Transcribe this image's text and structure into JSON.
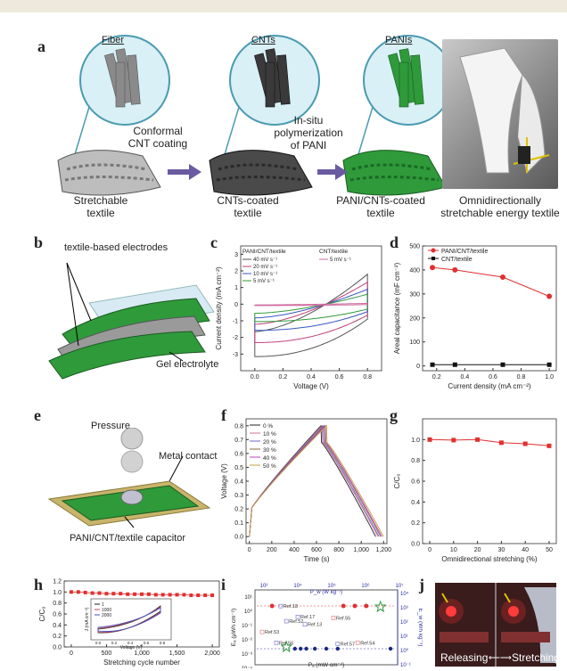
{
  "panel_letters": {
    "a": "a",
    "b": "b",
    "c": "c",
    "d": "d",
    "e": "e",
    "f": "f",
    "g": "g",
    "h": "h",
    "i": "i",
    "j": "j"
  },
  "schematic_a": {
    "zoom_labels": [
      "Fiber",
      "CNTs",
      "PANIs"
    ],
    "captions": [
      "Stretchable\ntextile",
      "CNTs-coated\ntextile",
      "PANI/CNTs-coated\ntextile",
      "Omnidirectionally\nstretchable energy textile"
    ],
    "step_labels": [
      "Conformal\nCNT coating",
      "In-situ\npolymerization\nof PANI"
    ],
    "colors": {
      "fiber": "#8a8a8a",
      "cnt": "#3a3a3a",
      "pani": "#2f9a3a",
      "arrow": "#6b5aa0"
    }
  },
  "schematic_b": {
    "top_label": "textile-based electrodes",
    "bottom_label": "Gel electrolyte"
  },
  "schematic_e": {
    "pressure": "Pressure",
    "contact": "Metal contact",
    "device": "PANI/CNT/textile capacitor"
  },
  "photo_j": {
    "left": "Releasing",
    "right": "Stretching",
    "arrow": "⟵⟶"
  },
  "chart_data": [
    {
      "panel": "c",
      "type": "line",
      "xlabel": "Voltage (V)",
      "ylabel": "Current density (mA cm⁻²)",
      "xlim": [
        -0.1,
        0.9
      ],
      "ylim": [
        -4,
        3.5
      ],
      "xticks": [
        0.0,
        0.2,
        0.4,
        0.6,
        0.8
      ],
      "yticks": [
        -3,
        -2,
        -1,
        0,
        1,
        2,
        3
      ],
      "legend_headers": [
        "PANI/CNT/textile",
        "CNT/textile"
      ],
      "series": [
        {
          "name": "40 mV s⁻¹",
          "amp": 3.0,
          "color": "#555555"
        },
        {
          "name": "20 mV s⁻¹",
          "amp": 2.2,
          "color": "#c0407a"
        },
        {
          "name": "10 mV s⁻¹",
          "amp": 1.5,
          "color": "#3a55c0"
        },
        {
          "name": "5 mV s⁻¹",
          "amp": 1.0,
          "color": "#2f9a3a"
        },
        {
          "name": "5 mV s⁻¹",
          "amp": 0.08,
          "color": "#d06aa0"
        }
      ]
    },
    {
      "panel": "d",
      "type": "line",
      "xlabel": "Current density (mA cm⁻²)",
      "ylabel": "Areal capacitance (mF cm⁻²)",
      "xlim": [
        0.1,
        1.05
      ],
      "ylim": [
        -20,
        500
      ],
      "xticks": [
        0.2,
        0.4,
        0.6,
        0.8,
        1.0
      ],
      "yticks": [
        0,
        100,
        200,
        300,
        400,
        500
      ],
      "series": [
        {
          "name": "PANI/CNT/textile",
          "x": [
            0.17,
            0.33,
            0.67,
            1.0
          ],
          "y": [
            410,
            400,
            370,
            290
          ],
          "color": "#e03030",
          "marker": "circle"
        },
        {
          "name": "CNT/textile",
          "x": [
            0.17,
            0.33,
            0.67,
            1.0
          ],
          "y": [
            5,
            5,
            5,
            5
          ],
          "color": "#111111",
          "marker": "square"
        }
      ]
    },
    {
      "panel": "f",
      "type": "line",
      "xlabel": "Time (s)",
      "ylabel": "Voltage (V)",
      "xlim": [
        -30,
        1230
      ],
      "ylim": [
        -0.05,
        0.85
      ],
      "xticks": [
        0,
        200,
        400,
        600,
        800,
        1000,
        1200
      ],
      "xtick_labels": [
        "0",
        "200",
        "400",
        "600",
        "800",
        "1,000",
        "1,200"
      ],
      "yticks": [
        0.0,
        0.1,
        0.2,
        0.3,
        0.4,
        0.5,
        0.6,
        0.7,
        0.8
      ],
      "series": [
        {
          "name": "0 %",
          "peak": 640,
          "end": 1130,
          "color": "#222222"
        },
        {
          "name": "10 %",
          "peak": 650,
          "end": 1150,
          "color": "#d07090"
        },
        {
          "name": "20 %",
          "peak": 660,
          "end": 1160,
          "color": "#6a6ad0"
        },
        {
          "name": "30 %",
          "peak": 670,
          "end": 1175,
          "color": "#8a6a3a"
        },
        {
          "name": "40 %",
          "peak": 680,
          "end": 1185,
          "color": "#c040c0"
        },
        {
          "name": "50 %",
          "peak": 690,
          "end": 1200,
          "color": "#c0a040"
        }
      ]
    },
    {
      "panel": "g",
      "type": "line",
      "xlabel": "Omnidirectional stretching (%)",
      "ylabel": "C/C₀",
      "xlim": [
        -3,
        53
      ],
      "ylim": [
        0,
        1.2
      ],
      "xticks": [
        0,
        10,
        20,
        30,
        40,
        50
      ],
      "yticks": [
        0.0,
        0.2,
        0.4,
        0.6,
        0.8,
        1.0
      ],
      "series": [
        {
          "name": "C/C₀",
          "x": [
            0,
            10,
            20,
            30,
            40,
            50
          ],
          "y": [
            1.0,
            0.995,
            1.0,
            0.97,
            0.96,
            0.94
          ],
          "color": "#e03030"
        }
      ]
    },
    {
      "panel": "h",
      "type": "line",
      "xlabel": "Stretching cycle number",
      "ylabel": "C/C₀",
      "xlim": [
        -100,
        2100
      ],
      "ylim": [
        0,
        1.2
      ],
      "xticks": [
        0,
        500,
        1000,
        1500,
        2000
      ],
      "xtick_labels": [
        "0",
        "500",
        "1,000",
        "1,500",
        "2,000"
      ],
      "yticks": [
        0.0,
        0.2,
        0.4,
        0.6,
        0.8,
        1.0,
        1.2
      ],
      "series": [
        {
          "name": "C/C₀",
          "x": [
            0,
            100,
            200,
            300,
            400,
            500,
            600,
            700,
            800,
            900,
            1000,
            1100,
            1200,
            1300,
            1400,
            1500,
            1600,
            1700,
            1800,
            1900,
            2000
          ],
          "y": [
            1.0,
            1.0,
            0.99,
            0.98,
            0.98,
            0.97,
            0.97,
            0.97,
            0.96,
            0.96,
            0.96,
            0.96,
            0.95,
            0.95,
            0.95,
            0.95,
            0.95,
            0.94,
            0.94,
            0.94,
            0.94
          ],
          "color": "#e03030"
        }
      ],
      "inset": {
        "xlabel": "Voltage (V)",
        "ylabel": "J (mA cm⁻²)",
        "legend": [
          "1",
          "1000",
          "2000"
        ],
        "xticks": [
          "0.0",
          "0.2",
          "0.4",
          "0.6",
          "0.8"
        ]
      }
    },
    {
      "panel": "i",
      "type": "scatter",
      "xlabel": "Pₐ (mW cm⁻²)",
      "ylabel": "Eₐ (μWh cm⁻²)",
      "top_label": "P_w (W kg⁻¹)",
      "right_label": "E_w (Wh kg⁻¹)",
      "log_scale": true,
      "xticks": [
        "10⁻³",
        "10⁻²",
        "10⁻¹",
        "10⁰",
        "10¹"
      ],
      "top_ticks": [
        "10³",
        "10⁴",
        "10⁵",
        "10⁶",
        "10⁷"
      ],
      "yticks": [
        "10¹",
        "10⁰",
        "10⁻¹",
        "10⁻²",
        "10⁻³",
        "10⁻⁴"
      ],
      "right_ticks": [
        "10⁴",
        "10³",
        "10²",
        "10¹",
        "10⁰",
        "10⁻¹"
      ],
      "refs": [
        "Ref.18",
        "Ref.17",
        "Ref.55",
        "Ref.52",
        "Ref.13",
        "Ref.53",
        "Ref.56",
        "Ref.57",
        "Ref.54"
      ]
    }
  ]
}
